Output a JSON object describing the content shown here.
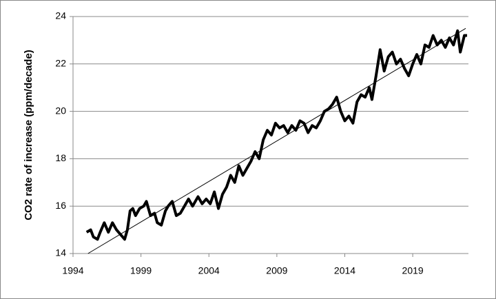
{
  "chart_data": {
    "type": "line",
    "y_label": "CO2 rate of increase (ppm/decade)",
    "xlim": [
      1994,
      2023.1
    ],
    "xticks": [
      1994,
      1999,
      2004,
      2009,
      2014,
      2019
    ],
    "ylim": [
      14,
      24
    ],
    "yticks": [
      14,
      16,
      18,
      20,
      22,
      24
    ],
    "grid": true,
    "series": [
      {
        "color": "#000000",
        "width": 4,
        "x": [
          1995.0,
          1995.3,
          1995.5,
          1995.8,
          1996.0,
          1996.3,
          1996.6,
          1996.9,
          1997.2,
          1997.5,
          1997.8,
          1998.0,
          1998.2,
          1998.4,
          1998.6,
          1998.9,
          1999.2,
          1999.4,
          1999.7,
          2000.0,
          2000.2,
          2000.5,
          2000.8,
          2001.0,
          2001.3,
          2001.6,
          2001.9,
          2002.2,
          2002.5,
          2002.8,
          2003.2,
          2003.5,
          2003.8,
          2004.1,
          2004.4,
          2004.7,
          2005.0,
          2005.3,
          2005.6,
          2005.9,
          2006.2,
          2006.5,
          2006.8,
          2007.1,
          2007.4,
          2007.7,
          2008.0,
          2008.3,
          2008.6,
          2008.9,
          2009.2,
          2009.5,
          2009.8,
          2010.1,
          2010.4,
          2010.7,
          2011.0,
          2011.3,
          2011.6,
          2011.9,
          2012.2,
          2012.5,
          2012.8,
          2013.1,
          2013.4,
          2013.7,
          2014.0,
          2014.3,
          2014.6,
          2014.9,
          2015.2,
          2015.5,
          2015.8,
          2016.0,
          2016.3,
          2016.6,
          2016.9,
          2017.2,
          2017.5,
          2017.8,
          2018.1,
          2018.4,
          2018.7,
          2019.0,
          2019.3,
          2019.6,
          2019.9,
          2020.2,
          2020.5,
          2020.8,
          2021.1,
          2021.4,
          2021.7,
          2022.0,
          2022.3,
          2022.5,
          2022.8,
          2023.0
        ],
        "values": [
          14.9,
          15.0,
          14.7,
          14.6,
          14.9,
          15.3,
          14.9,
          15.3,
          15.0,
          14.8,
          14.6,
          15.0,
          15.8,
          15.9,
          15.6,
          15.9,
          16.0,
          16.2,
          15.6,
          15.7,
          15.3,
          15.2,
          15.8,
          16.0,
          16.2,
          15.6,
          15.7,
          16.0,
          16.3,
          16.0,
          16.4,
          16.1,
          16.3,
          16.1,
          16.6,
          15.9,
          16.5,
          16.8,
          17.3,
          17.0,
          17.7,
          17.3,
          17.6,
          17.9,
          18.3,
          18.0,
          18.8,
          19.2,
          19.0,
          19.5,
          19.3,
          19.4,
          19.1,
          19.4,
          19.2,
          19.6,
          19.5,
          19.1,
          19.4,
          19.3,
          19.6,
          20.0,
          20.1,
          20.3,
          20.6,
          20.0,
          19.6,
          19.8,
          19.5,
          20.4,
          20.7,
          20.6,
          21.0,
          20.5,
          21.5,
          22.6,
          21.7,
          22.3,
          22.5,
          22.0,
          22.2,
          21.8,
          21.5,
          22.0,
          22.4,
          22.0,
          22.8,
          22.7,
          23.2,
          22.8,
          23.0,
          22.7,
          23.1,
          22.8,
          23.4,
          22.5,
          23.2,
          23.2
        ]
      },
      {
        "color": "#000000",
        "width": 1,
        "x": [
          1995.1,
          2022.9
        ],
        "values": [
          14.0,
          23.5
        ]
      }
    ]
  }
}
